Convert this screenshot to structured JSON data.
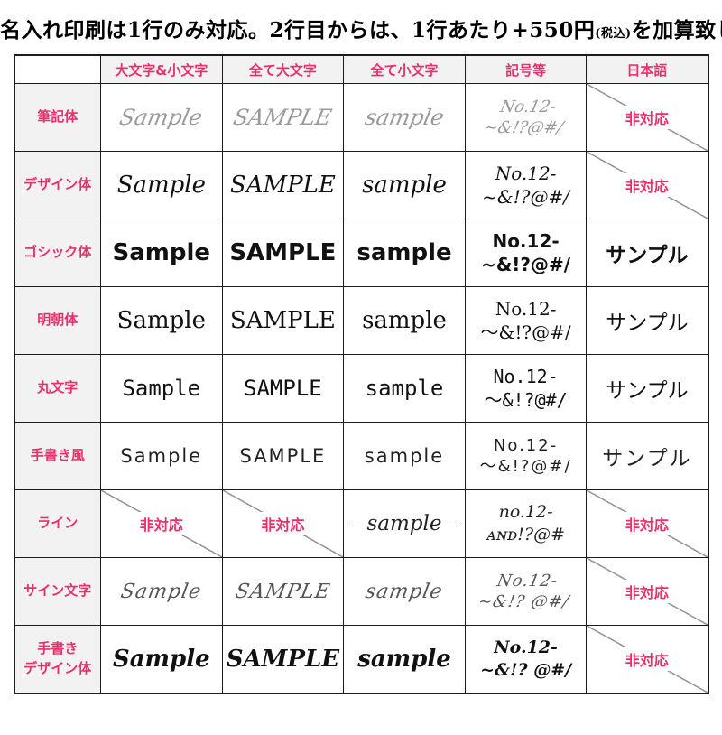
{
  "title": {
    "pre": "名入れ印刷は1行のみ対応。2行目からは、1行あたり+550円",
    "small": "(税込)",
    "post": "を加算致します。"
  },
  "colors": {
    "accent": "#e8316b",
    "label_bg": "#f2f2f3",
    "border": "#1c1c1c",
    "diagonal": "#999999"
  },
  "table": {
    "headers": [
      "",
      "大文字&小文字",
      "全て大文字",
      "全て小文字",
      "記号等",
      "日本語"
    ],
    "na_label": "非対応",
    "japanese_sample": "サンプル",
    "rows": [
      {
        "label_lines": [
          "筆記体"
        ],
        "style": "script",
        "upper_lower": "Sample",
        "upper": "SAMPLE",
        "lower": "sample",
        "symbols": [
          "No.12-",
          "~&!?@#/"
        ],
        "japanese": null
      },
      {
        "label_lines": [
          "デザイン体"
        ],
        "style": "design",
        "upper_lower": "Sample",
        "upper": "SAMPLE",
        "lower": "sample",
        "symbols": [
          "No.12-",
          "~&!?@#/"
        ],
        "japanese": null
      },
      {
        "label_lines": [
          "ゴシック体"
        ],
        "style": "gothic",
        "upper_lower": "Sample",
        "upper": "SAMPLE",
        "lower": "sample",
        "symbols": [
          "No.12-",
          "~&!?@#/"
        ],
        "japanese": "サンプル"
      },
      {
        "label_lines": [
          "明朝体"
        ],
        "style": "mincho",
        "upper_lower": "Sample",
        "upper": "SAMPLE",
        "lower": "sample",
        "symbols": [
          "No.12-",
          "〜&!?@#/"
        ],
        "japanese": "サンプル"
      },
      {
        "label_lines": [
          "丸文字"
        ],
        "style": "maru",
        "upper_lower": "Sample",
        "upper": "SAMPLE",
        "lower": "sample",
        "symbols": [
          "No.12-",
          "〜&!?@#/"
        ],
        "japanese": "サンプル"
      },
      {
        "label_lines": [
          "手書き風"
        ],
        "style": "tegaki",
        "upper_lower": "Sample",
        "upper": "SAMPLE",
        "lower": "sample",
        "symbols": [
          "No.12-",
          "〜&!?@#/"
        ],
        "japanese": "サンプル"
      },
      {
        "label_lines": [
          "ライン"
        ],
        "style": "line",
        "upper_lower": null,
        "upper": null,
        "lower": "sample",
        "symbols": [
          "no.12-",
          "ᴀɴᴅ!?@#"
        ],
        "japanese": null
      },
      {
        "label_lines": [
          "サイン文字"
        ],
        "style": "sign",
        "upper_lower": "Sample",
        "upper": "SAMPLE",
        "lower": "sample",
        "symbols": [
          "No.12-",
          "~&!? @#/"
        ],
        "japanese": null
      },
      {
        "label_lines": [
          "手書き",
          "デザイン体"
        ],
        "style": "brush",
        "upper_lower": "Sample",
        "upper": "SAMPLE",
        "lower": "sample",
        "symbols": [
          "No.12-",
          "~&!? @#/"
        ],
        "japanese": null
      }
    ]
  }
}
